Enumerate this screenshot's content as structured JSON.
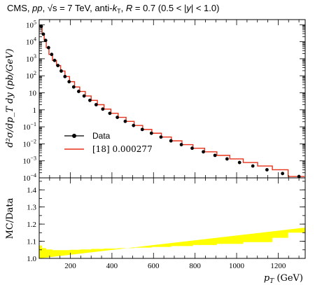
{
  "chart_data": [
    {
      "type": "line",
      "title": "CMS, pp, √s = 7 TeV, anti-kT, R = 0.7 (0.5 < |y| < 1.0)",
      "title_parts": {
        "prefix": "CMS, ",
        "pp": "pp",
        "sep1": ", ",
        "sqrt_s": "√s",
        "energy": " = 7 TeV, anti-",
        "kt": "k",
        "kt_sub": "T",
        "sep2": ", ",
        "R": "R",
        "R_value": " = 0.7 (0.5 < |",
        "y": "y",
        "y_close": "| < 1.0)"
      },
      "ylabel": "d²σ/dp_T dy (pb/GeV)",
      "yscale": "log",
      "ylim": [
        0.0001,
        200000
      ],
      "xlim": [
        50,
        1330
      ],
      "yticks": [
        "10^5",
        "10^4",
        "10^3",
        "10^2",
        "10",
        "1",
        "10^-1",
        "10^-2",
        "10^-3",
        "10^-4"
      ],
      "legend_position": "lower-left",
      "series": [
        {
          "name": "Data",
          "style": "markers",
          "color": "#000000",
          "x": [
            60,
            70,
            81,
            95,
            110,
            124,
            140,
            156,
            174,
            194,
            216,
            240,
            266,
            294,
            324,
            356,
            390,
            426,
            464,
            504,
            546,
            590,
            636,
            684,
            734,
            786,
            840,
            896,
            954,
            1014,
            1078,
            1146,
            1221,
            1300
          ],
          "y": [
            80000,
            28000,
            12000,
            4500,
            1800,
            800,
            400,
            190,
            90,
            45,
            22,
            12,
            6.5,
            3.6,
            2.0,
            1.1,
            0.62,
            0.36,
            0.21,
            0.12,
            0.07,
            0.042,
            0.025,
            0.015,
            0.009,
            0.0055,
            0.0034,
            0.0021,
            0.0013,
            0.0008,
            0.0005,
            0.0003,
            0.00018,
            0.00012
          ]
        },
        {
          "name": "[18] 0.000277",
          "style": "step",
          "color": "#e8311a",
          "edges": [
            56,
            64,
            74,
            84,
            97,
            114,
            133,
            153,
            174,
            196,
            220,
            245,
            272,
            300,
            330,
            362,
            395,
            430,
            468,
            507,
            548,
            592,
            638,
            686,
            737,
            790,
            846,
            905,
            967,
            1032,
            1101,
            1172,
            1248,
            1327
          ],
          "values": [
            80000,
            28000,
            12000,
            4500,
            1800,
            800,
            400,
            190,
            90,
            45,
            22,
            12,
            6.5,
            3.6,
            2.0,
            1.1,
            0.62,
            0.36,
            0.21,
            0.12,
            0.07,
            0.042,
            0.025,
            0.015,
            0.009,
            0.0055,
            0.0034,
            0.0021,
            0.0013,
            0.0008,
            0.0005,
            0.0003,
            0.00012
          ]
        }
      ]
    },
    {
      "type": "area",
      "ylabel": "MC/Data",
      "xlabel": "p_T (GeV)",
      "xlabel_parts": {
        "p": "p",
        "sub": "T",
        "unit": " (GeV)"
      },
      "ylim": [
        1.0,
        1.47
      ],
      "xlim": [
        50,
        1330
      ],
      "yticks": [
        "1.0",
        "1.1",
        "1.2",
        "1.3",
        "1.4"
      ],
      "xticks": [
        "200",
        "400",
        "600",
        "800",
        "1000",
        "1200"
      ],
      "series": [
        {
          "name": "band",
          "color": "#ffff00",
          "edges": [
            50,
            64,
            84,
            114,
            153,
            196,
            245,
            300,
            362,
            430,
            507,
            592,
            686,
            790,
            905,
            1032,
            1172,
            1248,
            1330
          ],
          "values": [
            1.075,
            1.06,
            1.052,
            1.048,
            1.048,
            1.05,
            1.052,
            1.055,
            1.057,
            1.06,
            1.063,
            1.067,
            1.072,
            1.078,
            1.085,
            1.095,
            1.12,
            1.15,
            1.18
          ]
        }
      ]
    }
  ]
}
